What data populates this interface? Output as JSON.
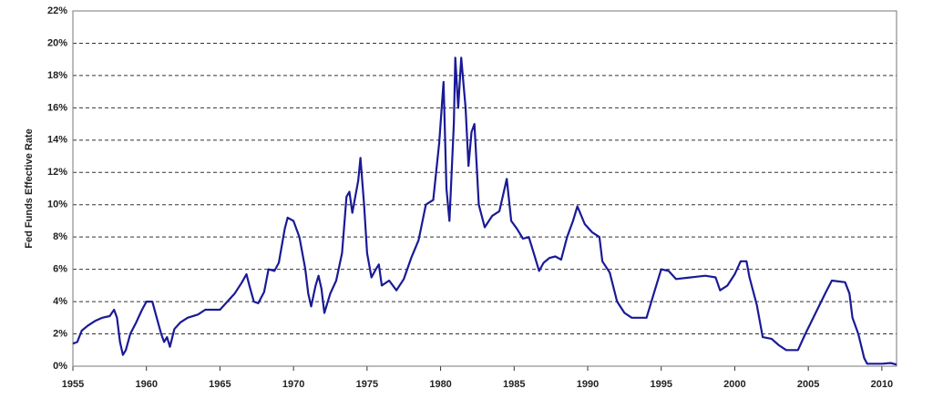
{
  "chart_data": {
    "type": "line",
    "y_label": "Fed Funds Effective Rate",
    "x": [
      1955,
      1955.3,
      1955.6,
      1956,
      1956.5,
      1957,
      1957.5,
      1957.8,
      1958,
      1958.2,
      1958.4,
      1958.6,
      1958.9,
      1959.3,
      1959.7,
      1960,
      1960.4,
      1960.7,
      1961,
      1961.2,
      1961.4,
      1961.6,
      1961.9,
      1962.3,
      1962.8,
      1963.5,
      1964,
      1965,
      1965.5,
      1966,
      1966.5,
      1966.8,
      1967,
      1967.3,
      1967.6,
      1968,
      1968.3,
      1968.7,
      1969,
      1969.4,
      1969.6,
      1970,
      1970.4,
      1970.8,
      1971,
      1971.2,
      1971.5,
      1971.7,
      1971.9,
      1972.1,
      1972.5,
      1972.9,
      1973.3,
      1973.6,
      1973.8,
      1974,
      1974.4,
      1974.55,
      1974.8,
      1975,
      1975.3,
      1975.6,
      1975.8,
      1976,
      1976.5,
      1977,
      1977.5,
      1978,
      1978.5,
      1979,
      1979.5,
      1979.9,
      1980.2,
      1980.4,
      1980.6,
      1980.9,
      1981,
      1981.2,
      1981.4,
      1981.7,
      1981.9,
      1982.1,
      1982.3,
      1982.6,
      1983,
      1983.5,
      1984,
      1984.5,
      1984.8,
      1985.2,
      1985.6,
      1986,
      1986.4,
      1986.7,
      1987,
      1987.4,
      1987.8,
      1988.2,
      1988.6,
      1989,
      1989.3,
      1989.8,
      1990.3,
      1990.8,
      1991,
      1991.5,
      1992,
      1992.5,
      1993,
      1994,
      1994.5,
      1995,
      1995.5,
      1996,
      1997,
      1998,
      1998.7,
      1999,
      1999.5,
      2000,
      2000.4,
      2000.8,
      2001,
      2001.5,
      2001.9,
      2002.5,
      2003,
      2003.5,
      2004.3,
      2004.8,
      2005.5,
      2006.2,
      2006.6,
      2007.5,
      2007.8,
      2008,
      2008.4,
      2008.8,
      2009,
      2010,
      2010.6,
      2011
    ],
    "series": [
      {
        "color": "#1a1a96",
        "values": [
          1.4,
          1.5,
          2.2,
          2.5,
          2.8,
          3.0,
          3.1,
          3.5,
          3.0,
          1.5,
          0.7,
          1.0,
          2.0,
          2.7,
          3.5,
          4.0,
          4.0,
          3.0,
          2.0,
          1.5,
          1.8,
          1.2,
          2.3,
          2.7,
          3.0,
          3.2,
          3.5,
          3.5,
          4.0,
          4.5,
          5.2,
          5.7,
          5.0,
          4.0,
          3.9,
          4.6,
          6.0,
          5.9,
          6.4,
          8.5,
          9.2,
          9.0,
          8.0,
          6.0,
          4.5,
          3.7,
          5.0,
          5.6,
          4.8,
          3.3,
          4.5,
          5.3,
          7.0,
          10.5,
          10.8,
          9.5,
          11.5,
          12.9,
          10.0,
          7.0,
          5.5,
          6.0,
          6.3,
          5.0,
          5.3,
          4.7,
          5.4,
          6.7,
          7.8,
          10.0,
          10.3,
          13.8,
          17.6,
          11.0,
          9.0,
          15.0,
          19.1,
          16.0,
          19.1,
          16.0,
          12.4,
          14.5,
          15.0,
          10.0,
          8.6,
          9.3,
          9.6,
          11.6,
          9.0,
          8.5,
          7.9,
          8.0,
          6.8,
          5.9,
          6.4,
          6.7,
          6.8,
          6.6,
          8.0,
          9.0,
          9.9,
          8.8,
          8.3,
          8.0,
          6.5,
          5.8,
          4.0,
          3.3,
          3.0,
          3.0,
          4.5,
          6.0,
          5.9,
          5.4,
          5.5,
          5.6,
          5.5,
          4.7,
          5.0,
          5.7,
          6.5,
          6.5,
          5.5,
          3.8,
          1.8,
          1.7,
          1.3,
          1.0,
          1.0,
          2.0,
          3.3,
          4.6,
          5.3,
          5.2,
          4.5,
          3.0,
          2.0,
          0.5,
          0.15,
          0.15,
          0.2,
          0.1
        ]
      }
    ],
    "xlim": [
      1955,
      2011
    ],
    "xticks": [
      1955,
      1960,
      1965,
      1970,
      1975,
      1980,
      1985,
      1990,
      1995,
      2000,
      2005,
      2010
    ],
    "ylim": [
      0,
      22
    ],
    "yticks": [
      {
        "value": 0,
        "label": "0%"
      },
      {
        "value": 2,
        "label": "2%"
      },
      {
        "value": 4,
        "label": "4%"
      },
      {
        "value": 6,
        "label": "6%"
      },
      {
        "value": 8,
        "label": "8%"
      },
      {
        "value": 10,
        "label": "10%"
      },
      {
        "value": 12,
        "label": "12%"
      },
      {
        "value": 14,
        "label": "14%"
      },
      {
        "value": 16,
        "label": "16%"
      },
      {
        "value": 18,
        "label": "18%"
      },
      {
        "value": 20,
        "label": "20%"
      },
      {
        "value": 22,
        "label": "22%"
      }
    ],
    "grid": true
  }
}
